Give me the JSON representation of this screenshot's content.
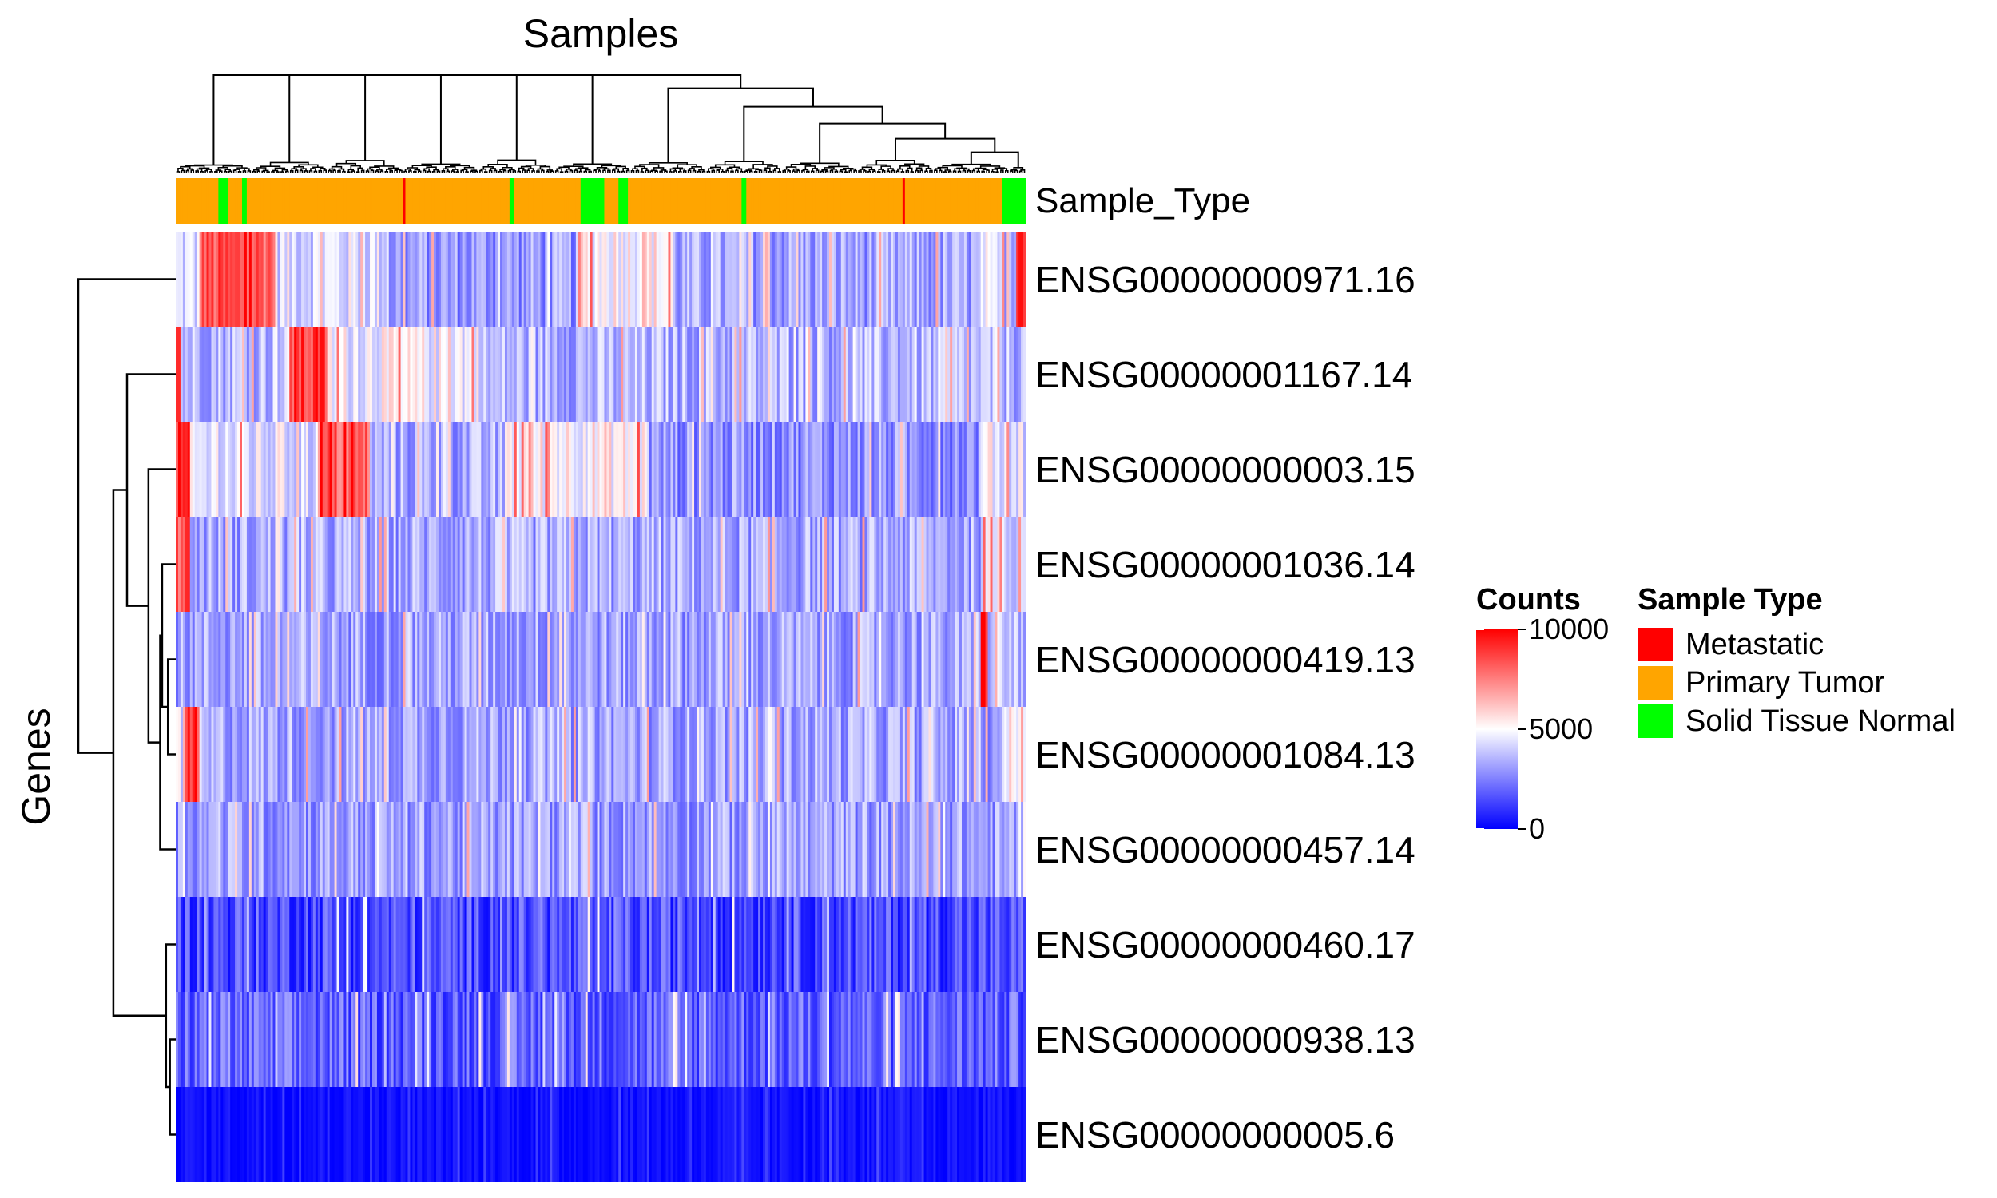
{
  "chart_data": {
    "type": "heatmap",
    "title": "",
    "column_title": "Samples",
    "row_title": "Genes",
    "annotation_name": "Sample_Type",
    "genes": [
      "ENSG00000000971.16",
      "ENSG00000001167.14",
      "ENSG00000000003.15",
      "ENSG00000001036.14",
      "ENSG00000000419.13",
      "ENSG00000001084.13",
      "ENSG00000000457.14",
      "ENSG00000000460.17",
      "ENSG00000000938.13",
      "ENSG00000000005.6"
    ],
    "sample_groups": [
      {
        "type": "Primary Tumor",
        "count": 18
      },
      {
        "type": "Solid Tissue Normal",
        "count": 4
      },
      {
        "type": "Primary Tumor",
        "count": 6
      },
      {
        "type": "Solid Tissue Normal",
        "count": 2
      },
      {
        "type": "Primary Tumor",
        "count": 66
      },
      {
        "type": "Metastatic",
        "count": 1
      },
      {
        "type": "Primary Tumor",
        "count": 44
      },
      {
        "type": "Solid Tissue Normal",
        "count": 2
      },
      {
        "type": "Primary Tumor",
        "count": 28
      },
      {
        "type": "Solid Tissue Normal",
        "count": 10
      },
      {
        "type": "Primary Tumor",
        "count": 6
      },
      {
        "type": "Solid Tissue Normal",
        "count": 4
      },
      {
        "type": "Primary Tumor",
        "count": 48
      },
      {
        "type": "Solid Tissue Normal",
        "count": 2
      },
      {
        "type": "Primary Tumor",
        "count": 66
      },
      {
        "type": "Metastatic",
        "count": 1
      },
      {
        "type": "Primary Tumor",
        "count": 41
      },
      {
        "type": "Solid Tissue Normal",
        "count": 10
      }
    ],
    "gene_profiles": [
      {
        "gene": "ENSG00000000971.16",
        "segments": [
          {
            "from": 0,
            "to": 10,
            "mean": 4200
          },
          {
            "from": 10,
            "to": 42,
            "mean": 8300
          },
          {
            "from": 42,
            "to": 90,
            "mean": 4400
          },
          {
            "from": 90,
            "to": 170,
            "mean": 3000
          },
          {
            "from": 170,
            "to": 210,
            "mean": 5200
          },
          {
            "from": 210,
            "to": 340,
            "mean": 3200
          },
          {
            "from": 340,
            "to": 355,
            "mean": 3800
          },
          {
            "from": 355,
            "to": 360,
            "mean": 10000
          }
        ]
      },
      {
        "gene": "ENSG00000001167.14",
        "segments": [
          {
            "from": 0,
            "to": 2,
            "mean": 9200
          },
          {
            "from": 2,
            "to": 48,
            "mean": 3700
          },
          {
            "from": 48,
            "to": 64,
            "mean": 8600
          },
          {
            "from": 64,
            "to": 130,
            "mean": 4800
          },
          {
            "from": 130,
            "to": 300,
            "mean": 3500
          },
          {
            "from": 300,
            "to": 360,
            "mean": 3600
          }
        ]
      },
      {
        "gene": "ENSG00000000003.15",
        "segments": [
          {
            "from": 0,
            "to": 6,
            "mean": 9000
          },
          {
            "from": 6,
            "to": 60,
            "mean": 4300
          },
          {
            "from": 60,
            "to": 82,
            "mean": 8000
          },
          {
            "from": 82,
            "to": 140,
            "mean": 3300
          },
          {
            "from": 140,
            "to": 200,
            "mean": 5200
          },
          {
            "from": 200,
            "to": 340,
            "mean": 2900
          },
          {
            "from": 340,
            "to": 360,
            "mean": 4600
          }
        ]
      },
      {
        "gene": "ENSG00000001036.14",
        "segments": [
          {
            "from": 0,
            "to": 6,
            "mean": 8400
          },
          {
            "from": 6,
            "to": 340,
            "mean": 3300
          },
          {
            "from": 340,
            "to": 360,
            "mean": 4400
          }
        ]
      },
      {
        "gene": "ENSG00000000419.13",
        "segments": [
          {
            "from": 0,
            "to": 340,
            "mean": 3200
          },
          {
            "from": 340,
            "to": 343,
            "mean": 9600
          },
          {
            "from": 343,
            "to": 360,
            "mean": 3800
          }
        ]
      },
      {
        "gene": "ENSG00000001084.13",
        "segments": [
          {
            "from": 0,
            "to": 4,
            "mean": 4000
          },
          {
            "from": 4,
            "to": 10,
            "mean": 8400
          },
          {
            "from": 10,
            "to": 350,
            "mean": 3300
          },
          {
            "from": 350,
            "to": 360,
            "mean": 5200
          }
        ]
      },
      {
        "gene": "ENSG00000000457.14",
        "segments": [
          {
            "from": 0,
            "to": 360,
            "mean": 3100
          }
        ]
      },
      {
        "gene": "ENSG00000000460.17",
        "segments": [
          {
            "from": 0,
            "to": 360,
            "mean": 1500
          }
        ]
      },
      {
        "gene": "ENSG00000000938.13",
        "segments": [
          {
            "from": 0,
            "to": 360,
            "mean": 1900
          }
        ]
      },
      {
        "gene": "ENSG00000000005.6",
        "segments": [
          {
            "from": 0,
            "to": 360,
            "mean": 300
          }
        ]
      }
    ],
    "color_scale": {
      "min": 0,
      "mid": 5000,
      "max": 10000,
      "min_color": "#0000ff",
      "mid_color": "#ffffff",
      "max_color": "#ff0000"
    },
    "row_dendrogram": [
      {
        "merge": [
          8,
          9
        ],
        "height": 0.06
      },
      {
        "merge": [
          7,
          "c1"
        ],
        "height": 0.1
      },
      {
        "merge": [
          4,
          5
        ],
        "height": 0.08
      },
      {
        "merge": [
          3,
          "c3"
        ],
        "height": 0.14
      },
      {
        "merge": [
          "c4",
          6
        ],
        "height": 0.16
      },
      {
        "merge": [
          2,
          "c5"
        ],
        "height": 0.28
      },
      {
        "merge": [
          1,
          "c6"
        ],
        "height": 0.5
      },
      {
        "merge": [
          "c2",
          "c7"
        ],
        "height": 0.64
      },
      {
        "merge": [
          0,
          "c8"
        ],
        "height": 1.0
      }
    ]
  },
  "legends": {
    "counts": {
      "title": "Counts",
      "ticks": [
        {
          "label": "10000",
          "value": 10000
        },
        {
          "label": "5000",
          "value": 5000
        },
        {
          "label": "0",
          "value": 0
        }
      ]
    },
    "sample_type": {
      "title": "Sample Type",
      "items": [
        {
          "label": "Metastatic",
          "color": "#ff0000"
        },
        {
          "label": "Primary Tumor",
          "color": "#ffa500"
        },
        {
          "label": "Solid Tissue Normal",
          "color": "#00ff00"
        }
      ]
    }
  }
}
